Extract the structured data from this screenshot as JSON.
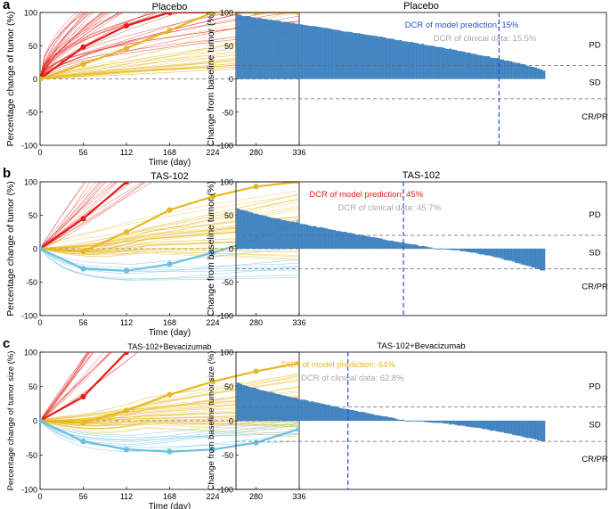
{
  "figure": {
    "panel_letters": [
      "a",
      "b",
      "c"
    ],
    "colors": {
      "progressive": "#e0201b",
      "stable": "#e8b820",
      "responder": "#6cc0e0",
      "bars": "#3f86c6",
      "dashed_ref": "#5a6a7a",
      "dcr_line": "#2950c8",
      "clinical_text": "#a8a8a8"
    }
  },
  "chart_data": [
    {
      "type": "line",
      "panel": "a",
      "title": "Placebo",
      "xlabel": "Time (day)",
      "ylabel": "Percentage change of tumor (%)",
      "x_ticks": [
        0,
        56,
        112,
        168,
        224,
        280,
        336
      ],
      "y_ticks": [
        -100,
        -50,
        0,
        50,
        100
      ],
      "xlim": [
        0,
        336
      ],
      "ylim": [
        -100,
        100
      ],
      "reference_line_y": 0,
      "series": [
        {
          "name": "progressive-median",
          "group": "progressive",
          "x": [
            0,
            56,
            112,
            168,
            224,
            280,
            336
          ],
          "y": [
            0,
            48,
            80,
            100,
            100,
            100,
            100
          ]
        },
        {
          "name": "stable-median",
          "group": "stable",
          "x": [
            0,
            56,
            112,
            168,
            224,
            280,
            336
          ],
          "y": [
            0,
            22,
            46,
            73,
            100,
            100,
            100
          ]
        }
      ]
    },
    {
      "type": "bar",
      "panel": "a",
      "title": "Placebo",
      "ylabel": "Change from baseline tumor (%)",
      "y_ticks": [
        -100,
        -50,
        0,
        50,
        100
      ],
      "ylim": [
        -100,
        100
      ],
      "thresholds": [
        20,
        -30
      ],
      "n_bars": 112,
      "sorted_profile": {
        "start": 96,
        "end": 12,
        "min": 12,
        "curve_power": 0.8
      },
      "dcr_position_fraction": 0.85,
      "labels": {
        "dcr_model": "DCR of model prediction: 15%",
        "dcr_clinical": "DCR of clinical data: 15.5%"
      },
      "category_labels": [
        "PD",
        "SD",
        "CR/PR"
      ]
    },
    {
      "type": "line",
      "panel": "b",
      "title": "TAS-102",
      "xlabel": "Time (day)",
      "ylabel": "Percentage change of tumor (%)",
      "x_ticks": [
        0,
        56,
        112,
        168,
        224,
        280,
        336
      ],
      "y_ticks": [
        -100,
        -50,
        0,
        50,
        100
      ],
      "xlim": [
        0,
        336
      ],
      "ylim": [
        -100,
        100
      ],
      "reference_line_y": 0,
      "series": [
        {
          "name": "progressive-median",
          "group": "progressive",
          "x": [
            0,
            56,
            112
          ],
          "y": [
            0,
            45,
            100
          ]
        },
        {
          "name": "stable-median",
          "group": "stable",
          "x": [
            0,
            56,
            112,
            168,
            224,
            280,
            336
          ],
          "y": [
            0,
            -4,
            25,
            58,
            78,
            93,
            100
          ]
        },
        {
          "name": "responder-median",
          "group": "responder",
          "x": [
            0,
            56,
            112,
            168,
            224,
            280,
            336
          ],
          "y": [
            0,
            -30,
            -33,
            -23,
            -6,
            14,
            40
          ]
        }
      ]
    },
    {
      "type": "bar",
      "panel": "b",
      "title": "TAS-102",
      "ylabel": "Change from baseline tumor (%)",
      "y_ticks": [
        -100,
        -50,
        0,
        50,
        100
      ],
      "ylim": [
        -100,
        100
      ],
      "thresholds": [
        20,
        -30
      ],
      "n_bars": 112,
      "sorted_profile": {
        "start": 60,
        "end": -33,
        "zero_cross_fraction": 0.65
      },
      "dcr_position_fraction": 0.54,
      "labels": {
        "dcr_model": "DCR of model prediction: 45%",
        "dcr_clinical": "DCR of clinical data: 45.7%"
      },
      "category_labels": [
        "PD",
        "SD",
        "CR/PR"
      ]
    },
    {
      "type": "line",
      "panel": "c",
      "title": "TAS-102+Bevacizumab",
      "xlabel": "Time (day)",
      "ylabel": "Percentage change of tumor size (%)",
      "x_ticks": [
        0,
        56,
        112,
        168,
        224,
        280,
        336
      ],
      "y_ticks": [
        -100,
        -50,
        0,
        50,
        100
      ],
      "xlim": [
        0,
        336
      ],
      "ylim": [
        -100,
        100
      ],
      "reference_line_y": 0,
      "series": [
        {
          "name": "progressive-median",
          "group": "progressive",
          "x": [
            0,
            56,
            112
          ],
          "y": [
            0,
            35,
            100
          ]
        },
        {
          "name": "stable-median",
          "group": "stable",
          "x": [
            0,
            56,
            112,
            168,
            224,
            280,
            336
          ],
          "y": [
            0,
            -3,
            15,
            38,
            57,
            72,
            84
          ]
        },
        {
          "name": "responder-median",
          "group": "responder",
          "x": [
            0,
            56,
            112,
            168,
            224,
            280,
            336
          ],
          "y": [
            0,
            -30,
            -42,
            -45,
            -42,
            -32,
            -12
          ]
        }
      ]
    },
    {
      "type": "bar",
      "panel": "c",
      "title": "TAS-102+Bevacizumab",
      "ylabel": "Change from baseline tumor size (%)",
      "y_ticks": [
        -100,
        -50,
        0,
        50,
        100
      ],
      "ylim": [
        -100,
        100
      ],
      "thresholds": [
        20,
        -30
      ],
      "n_bars": 112,
      "sorted_profile": {
        "start": 55,
        "end": -30,
        "zero_cross_fraction": 0.55
      },
      "dcr_position_fraction": 0.36,
      "labels": {
        "dcr_model": "DCR of model prediction: 64%",
        "dcr_clinical": "DCR of clinical data: 62.8%"
      },
      "category_labels": [
        "PD",
        "SD",
        "CR/PR"
      ]
    }
  ]
}
